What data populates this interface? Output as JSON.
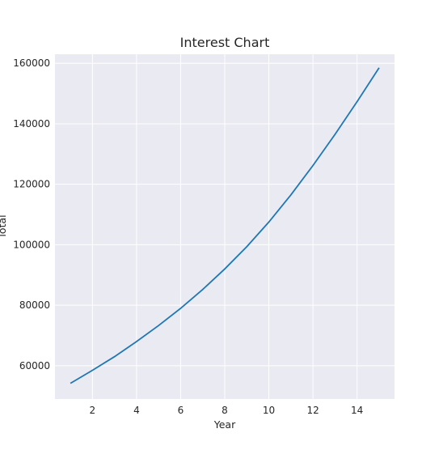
{
  "chart_data": {
    "type": "line",
    "title": "Interest Chart",
    "xlabel": "Year",
    "ylabel": "Total",
    "xlim": [
      0.3,
      15.7
    ],
    "ylim": [
      49000,
      163000
    ],
    "xticks": [
      2,
      4,
      6,
      8,
      10,
      12,
      14
    ],
    "yticks": [
      60000,
      80000,
      100000,
      120000,
      140000,
      160000
    ],
    "grid": true,
    "series": [
      {
        "color": "#1f77b4",
        "x": [
          1,
          2,
          3,
          4,
          5,
          6,
          7,
          8,
          9,
          10,
          11,
          12,
          13,
          14,
          15
        ],
        "y": [
          54200,
          58500,
          63000,
          68000,
          73300,
          79000,
          85200,
          92000,
          99400,
          107500,
          116500,
          126200,
          136500,
          147300,
          158500
        ]
      }
    ]
  }
}
